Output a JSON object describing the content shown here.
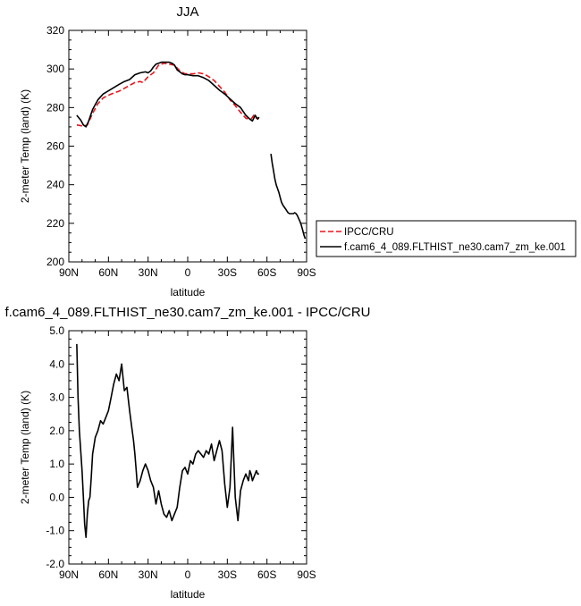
{
  "chart_data": [
    {
      "type": "line",
      "title": "JJA",
      "xlabel": "latitude",
      "ylabel": "2-meter Temp (land) (K)",
      "xlim": [
        90,
        -90
      ],
      "ylim": [
        200,
        320
      ],
      "xticks": [
        {
          "v": 90,
          "label": "90N"
        },
        {
          "v": 60,
          "label": "60N"
        },
        {
          "v": 30,
          "label": "30N"
        },
        {
          "v": 0,
          "label": "0"
        },
        {
          "v": -30,
          "label": "30S"
        },
        {
          "v": -60,
          "label": "60S"
        },
        {
          "v": -90,
          "label": "90S"
        }
      ],
      "yticks": [
        {
          "v": 200,
          "label": "200"
        },
        {
          "v": 220,
          "label": "220"
        },
        {
          "v": 240,
          "label": "240"
        },
        {
          "v": 260,
          "label": "260"
        },
        {
          "v": 280,
          "label": "280"
        },
        {
          "v": 300,
          "label": "300"
        },
        {
          "v": 320,
          "label": "320"
        }
      ],
      "legend": {
        "placement": "right"
      },
      "series": [
        {
          "name": "IPCC/CRU",
          "color": "#e8141b",
          "dash": "dashed",
          "x": [
            84,
            80,
            78,
            76,
            72,
            68,
            64,
            58,
            52,
            48,
            44,
            40,
            36,
            34,
            30,
            28,
            26,
            24,
            22,
            18,
            14,
            10,
            6,
            2,
            0,
            -4,
            -8,
            -12,
            -16,
            -20,
            -24,
            -28,
            -32,
            -36,
            -40,
            -44,
            -46,
            -48,
            -50,
            -52,
            -54
          ],
          "y": [
            271,
            270.5,
            270.5,
            271,
            277,
            282,
            285,
            287,
            288.5,
            290,
            291.5,
            293,
            293.5,
            293,
            296,
            297,
            298,
            300,
            302,
            303,
            302.5,
            302,
            299,
            297.5,
            297.5,
            297.5,
            298,
            297.5,
            296,
            294,
            291,
            288,
            284,
            281,
            277.5,
            274.5,
            274,
            274,
            276,
            274.5,
            274.5
          ]
        },
        {
          "name": "f.cam6_4_089.FLTHIST_ne30.cam7_zm_ke.001",
          "color": "#000000",
          "dash": "solid",
          "x": [
            84,
            81,
            79,
            77,
            75,
            72,
            68,
            64,
            58,
            52,
            48,
            44,
            40,
            36,
            32,
            30,
            28,
            26,
            24,
            22,
            20,
            18,
            16,
            14,
            12,
            10,
            8,
            6,
            4,
            2,
            0,
            -4,
            -8,
            -12,
            -16,
            -20,
            -24,
            -28,
            -32,
            -36,
            -40,
            -44,
            -47,
            -49,
            -51,
            -53,
            -54
          ],
          "y": [
            276,
            273.5,
            271,
            270,
            273,
            279,
            284,
            287,
            289.5,
            292,
            293.5,
            294.5,
            297,
            298,
            298.5,
            298,
            299,
            301,
            302.5,
            303,
            303.5,
            303.5,
            303.5,
            303.5,
            303,
            302,
            299.5,
            298.5,
            297.5,
            297,
            297,
            296.5,
            296.5,
            295.5,
            294,
            291.5,
            289,
            287,
            284.5,
            282,
            280,
            276,
            274,
            273,
            276,
            274,
            275
          ]
        },
        {
          "name": "f.cam6_4_089.FLTHIST_ne30.cam7_zm_ke.001",
          "color": "#000000",
          "dash": "solid",
          "x": [
            -63,
            -64,
            -65,
            -66,
            -67,
            -68,
            -69,
            -70,
            -71,
            -72,
            -73,
            -74,
            -75,
            -76,
            -77,
            -78,
            -79,
            -80,
            -81,
            -82,
            -83,
            -84,
            -85,
            -86,
            -87,
            -88,
            -89
          ],
          "y": [
            256,
            251,
            247,
            243,
            240,
            238,
            236,
            233.5,
            231,
            229.5,
            228.5,
            227.5,
            226.5,
            225.5,
            225,
            225,
            225,
            225,
            225.5,
            225,
            224,
            222.5,
            221,
            219,
            216.5,
            214,
            212
          ]
        }
      ]
    },
    {
      "type": "line",
      "title": "f.cam6_4_089.FLTHIST_ne30.cam7_zm_ke.001 - IPCC/CRU",
      "xlabel": "latitude",
      "ylabel": "2-meter Temp (land) (K)",
      "xlim": [
        90,
        -90
      ],
      "ylim": [
        -2.0,
        5.0
      ],
      "xticks": [
        {
          "v": 90,
          "label": "90N"
        },
        {
          "v": 60,
          "label": "60N"
        },
        {
          "v": 30,
          "label": "30N"
        },
        {
          "v": 0,
          "label": "0"
        },
        {
          "v": -30,
          "label": "30S"
        },
        {
          "v": -60,
          "label": "60S"
        },
        {
          "v": -90,
          "label": "90S"
        }
      ],
      "yticks": [
        {
          "v": -2.0,
          "label": "-2.0"
        },
        {
          "v": -1.0,
          "label": "-1.0"
        },
        {
          "v": 0.0,
          "label": "0.0"
        },
        {
          "v": 1.0,
          "label": "1.0"
        },
        {
          "v": 2.0,
          "label": "2.0"
        },
        {
          "v": 3.0,
          "label": "3.0"
        },
        {
          "v": 4.0,
          "label": "4.0"
        },
        {
          "v": 5.0,
          "label": "5.0"
        }
      ],
      "series": [
        {
          "color": "#000000",
          "dash": "solid",
          "x": [
            84,
            83,
            82,
            81,
            80,
            79,
            78,
            77,
            76,
            75,
            74,
            73,
            72,
            70,
            68,
            66,
            64,
            62,
            60,
            58,
            56,
            54,
            52,
            50,
            48,
            46,
            44,
            42,
            41,
            40,
            39,
            38,
            37,
            36,
            34,
            32,
            30,
            28,
            26,
            24,
            22,
            20,
            18,
            16,
            14,
            12,
            10,
            8,
            6,
            4,
            2,
            0,
            -2,
            -4,
            -6,
            -8,
            -10,
            -12,
            -14,
            -16,
            -18,
            -20,
            -22,
            -24,
            -26,
            -28,
            -30,
            -32,
            -34,
            -36,
            -38,
            -40,
            -42,
            -43,
            -44,
            -45,
            -46,
            -47,
            -48,
            -49,
            -50,
            -51,
            -52,
            -53,
            -54
          ],
          "y": [
            4.6,
            3.0,
            2.0,
            1.4,
            0.8,
            0.0,
            -0.8,
            -1.2,
            -0.5,
            -0.1,
            0.0,
            0.6,
            1.3,
            1.8,
            2.0,
            2.3,
            2.2,
            2.4,
            2.6,
            3.0,
            3.4,
            3.7,
            3.5,
            4.0,
            3.2,
            3.3,
            2.6,
            2.0,
            1.7,
            1.3,
            0.8,
            0.3,
            0.4,
            0.5,
            0.8,
            1.0,
            0.8,
            0.5,
            0.3,
            -0.2,
            0.2,
            -0.2,
            -0.5,
            -0.6,
            -0.4,
            -0.7,
            -0.5,
            -0.3,
            0.3,
            0.8,
            0.9,
            0.7,
            1.1,
            1.0,
            1.3,
            1.4,
            1.3,
            1.2,
            1.4,
            1.3,
            1.6,
            1.1,
            1.4,
            1.7,
            1.4,
            0.4,
            -0.3,
            0.3,
            2.1,
            0.0,
            -0.7,
            0.2,
            0.5,
            0.6,
            0.7,
            0.6,
            0.5,
            0.8,
            0.7,
            0.5,
            0.6,
            0.7,
            0.8,
            0.7,
            0.7
          ]
        }
      ]
    }
  ]
}
